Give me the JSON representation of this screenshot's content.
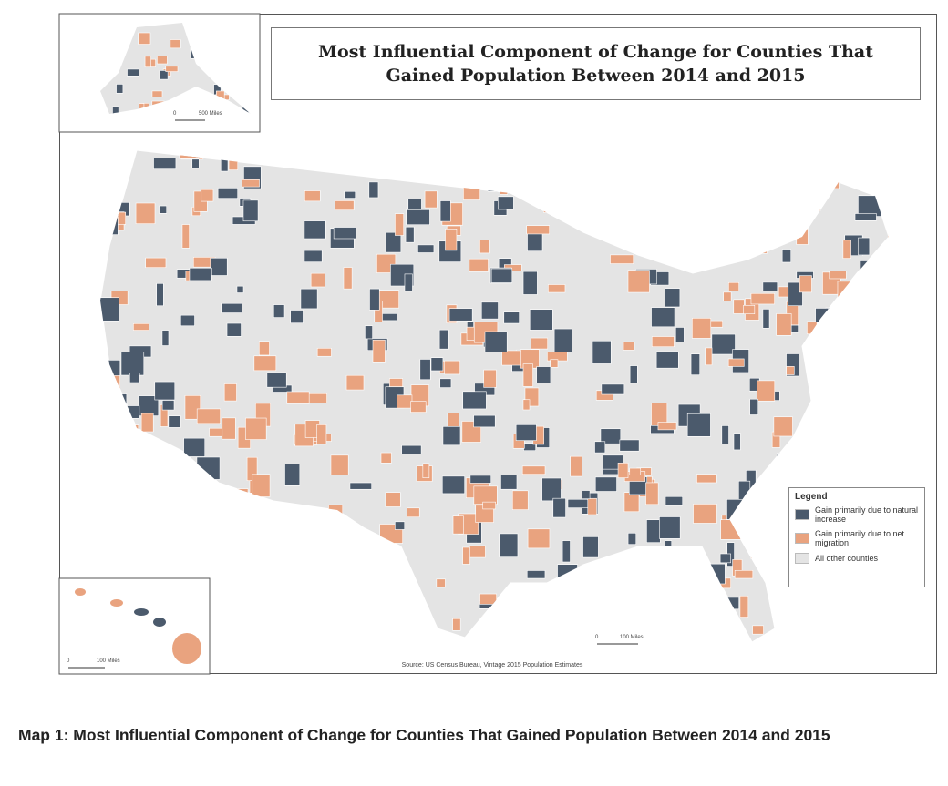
{
  "title": "Most Influential Component of Change for Counties That Gained Population Between 2014 and 2015",
  "legend": {
    "title": "Legend",
    "items": [
      {
        "label": "Gain primarily due to natural increase",
        "color": "#4b5a6c"
      },
      {
        "label": "Gain primarily due to net migration",
        "color": "#e9a37f"
      },
      {
        "label": "All other counties",
        "color": "#e4e4e4"
      }
    ]
  },
  "source": "Source: US Census Bureau, Vintage 2015 Population Estimates",
  "scales": {
    "alaska": [
      "0",
      "500 Miles"
    ],
    "hawaii": [
      "0",
      "100 Miles"
    ],
    "mainland": [
      "0",
      "100 Miles"
    ]
  },
  "caption": "Map 1: Most Influential Component of Change for Counties That Gained Population Between 2014 and 2015"
}
